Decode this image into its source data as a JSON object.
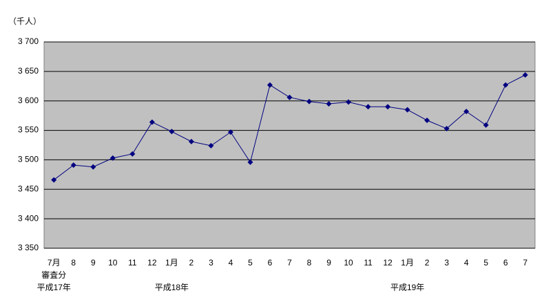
{
  "chart_data": {
    "type": "line",
    "y_unit": "（千人）",
    "categories": [
      "7月",
      "8",
      "9",
      "10",
      "11",
      "12",
      "1月",
      "2",
      "3",
      "4",
      "5",
      "6",
      "7",
      "8",
      "9",
      "10",
      "11",
      "12",
      "1月",
      "2",
      "3",
      "4",
      "5",
      "6",
      "7"
    ],
    "annotations": [
      "審査分",
      "平成17年",
      "平成18年",
      "平成19年"
    ],
    "series": [
      {
        "color": "#000080",
        "values": [
          3466,
          3491,
          3488,
          3503,
          3510,
          3564,
          3548,
          3531,
          3524,
          3547,
          3496,
          3627,
          3606,
          3599,
          3595,
          3598,
          3590,
          3590,
          3585,
          3567,
          3553,
          3582,
          3559,
          3627,
          3644
        ]
      }
    ],
    "ylim": [
      3350,
      3700
    ],
    "yticks": [
      {
        "value": 3350,
        "label": "3 350"
      },
      {
        "value": 3400,
        "label": "3 400"
      },
      {
        "value": 3450,
        "label": "3 450"
      },
      {
        "value": 3500,
        "label": "3 500"
      },
      {
        "value": 3550,
        "label": "3 550"
      },
      {
        "value": 3600,
        "label": "3 600"
      },
      {
        "value": 3650,
        "label": "3 650"
      },
      {
        "value": 3700,
        "label": "3 700"
      }
    ],
    "grid": true,
    "plot_background": "#c0c0c0"
  }
}
